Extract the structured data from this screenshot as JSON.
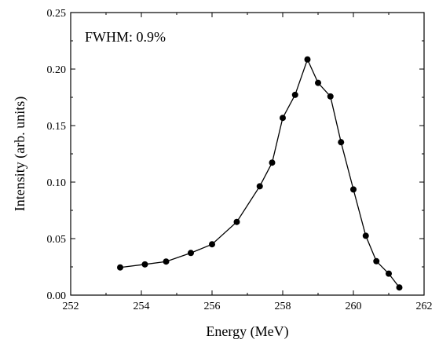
{
  "chart_data": {
    "type": "line",
    "title": "",
    "xlabel": "Energy (MeV)",
    "ylabel": "Intensity (arb. units)",
    "xlim": [
      252,
      262
    ],
    "ylim": [
      0.0,
      0.25
    ],
    "x_ticks": [
      "252",
      "254",
      "256",
      "258",
      "260",
      "262"
    ],
    "y_ticks": [
      "0.00",
      "0.05",
      "0.10",
      "0.15",
      "0.20",
      "0.25"
    ],
    "grid": false,
    "annotation": "FWHM: 0.9%",
    "series": [
      {
        "marker": "filled-circle",
        "color": "#000000",
        "x": [
          253.4,
          254.1,
          254.7,
          255.4,
          256.0,
          256.7,
          257.35,
          257.7,
          258.0,
          258.35,
          258.7,
          259.0,
          259.35,
          259.65,
          260.0,
          260.35,
          260.65,
          261.0,
          261.3
        ],
        "y": [
          0.0245,
          0.0272,
          0.0297,
          0.0373,
          0.045,
          0.0648,
          0.0963,
          0.1172,
          0.1568,
          0.1772,
          0.2085,
          0.1878,
          0.1758,
          0.1353,
          0.0935,
          0.0525,
          0.03,
          0.019,
          0.0068
        ]
      }
    ]
  }
}
